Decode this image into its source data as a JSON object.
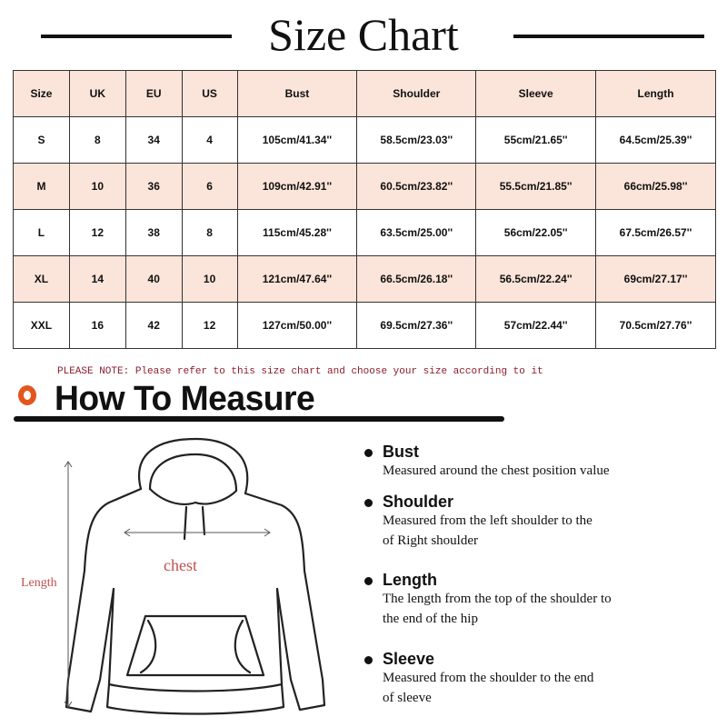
{
  "title": "Size Chart",
  "table": {
    "headers": [
      "Size",
      "UK",
      "EU",
      "US",
      "Bust",
      "Shoulder",
      "Sleeve",
      "Length"
    ],
    "rows": [
      [
        "S",
        "8",
        "34",
        "4",
        "105cm/41.34''",
        "58.5cm/23.03''",
        "55cm/21.65''",
        "64.5cm/25.39''"
      ],
      [
        "M",
        "10",
        "36",
        "6",
        "109cm/42.91''",
        "60.5cm/23.82''",
        "55.5cm/21.85''",
        "66cm/25.98''"
      ],
      [
        "L",
        "12",
        "38",
        "8",
        "115cm/45.28''",
        "63.5cm/25.00''",
        "56cm/22.05''",
        "67.5cm/26.57''"
      ],
      [
        "XL",
        "14",
        "40",
        "10",
        "121cm/47.64''",
        "66.5cm/26.18''",
        "56.5cm/22.24''",
        "69cm/27.17''"
      ],
      [
        "XXL",
        "16",
        "42",
        "12",
        "127cm/50.00''",
        "69.5cm/27.36''",
        "57cm/22.44''",
        "70.5cm/27.76''"
      ]
    ]
  },
  "note": "PLEASE NOTE: Please refer to this size chart and choose your size according to it",
  "measure": {
    "title": "How To Measure",
    "diagram": {
      "length_label": "Length",
      "chest_label": "chest"
    },
    "items": [
      {
        "name": "Bust",
        "lines": [
          "Measured around the chest position value"
        ]
      },
      {
        "name": "Shoulder",
        "lines": [
          "Measured from the left shoulder to the",
          "of Right shoulder"
        ]
      },
      {
        "name": "Length",
        "lines": [
          "The length from the top of the shoulder to",
          "the end of the hip"
        ]
      },
      {
        "name": "Sleeve",
        "lines": [
          "Measured from the shoulder to the end",
          "of sleeve"
        ]
      }
    ]
  },
  "colors": {
    "header_row": "#fbe4d9",
    "note": "#8b1c2c",
    "accent": "#e4551e",
    "diagram_label": "#c0504d"
  }
}
